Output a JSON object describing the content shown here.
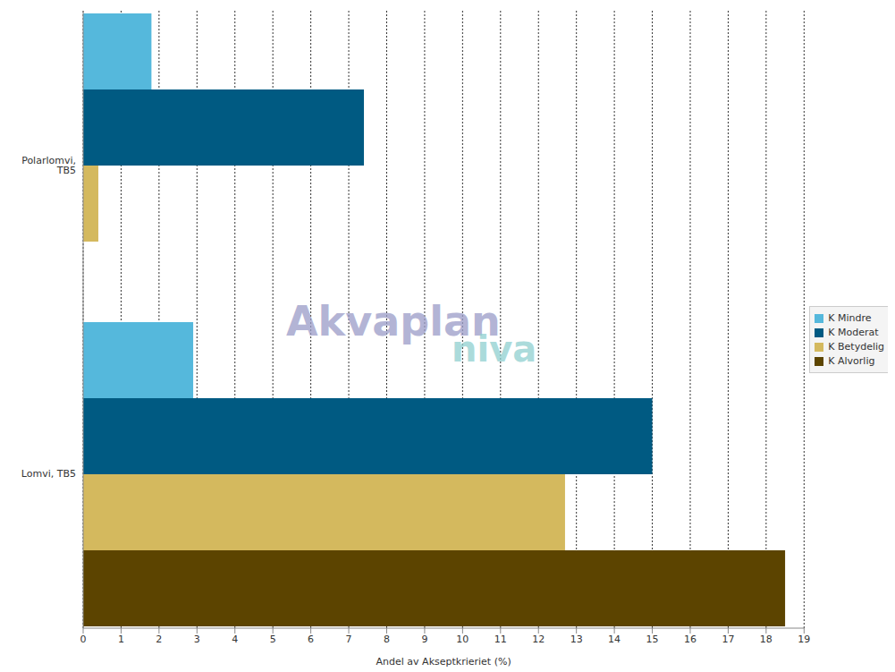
{
  "chart_data": {
    "type": "bar",
    "orientation": "horizontal",
    "categories": [
      "Polarlomvi, TB5",
      "Lomvi, TB5"
    ],
    "series": [
      {
        "name": "K Mindre",
        "color": "#55b8dc",
        "values": [
          1.8,
          2.9
        ]
      },
      {
        "name": "K Moderat",
        "color": "#005a82",
        "values": [
          7.4,
          15.0
        ]
      },
      {
        "name": "K Betydelig",
        "color": "#d4b95e",
        "values": [
          0.4,
          12.7
        ]
      },
      {
        "name": "K Alvorlig",
        "color": "#5c4400",
        "values": [
          0,
          18.5
        ]
      }
    ],
    "x_label": "Andel av Akseptkrieriet (%)",
    "xlim": [
      0,
      19
    ],
    "xticks": [
      0,
      1,
      2,
      3,
      4,
      5,
      6,
      7,
      8,
      9,
      10,
      11,
      12,
      13,
      14,
      15,
      16,
      17,
      18,
      19
    ],
    "grid": true,
    "legend": "right",
    "annotations": [
      "Akvaplan",
      "niva"
    ]
  }
}
